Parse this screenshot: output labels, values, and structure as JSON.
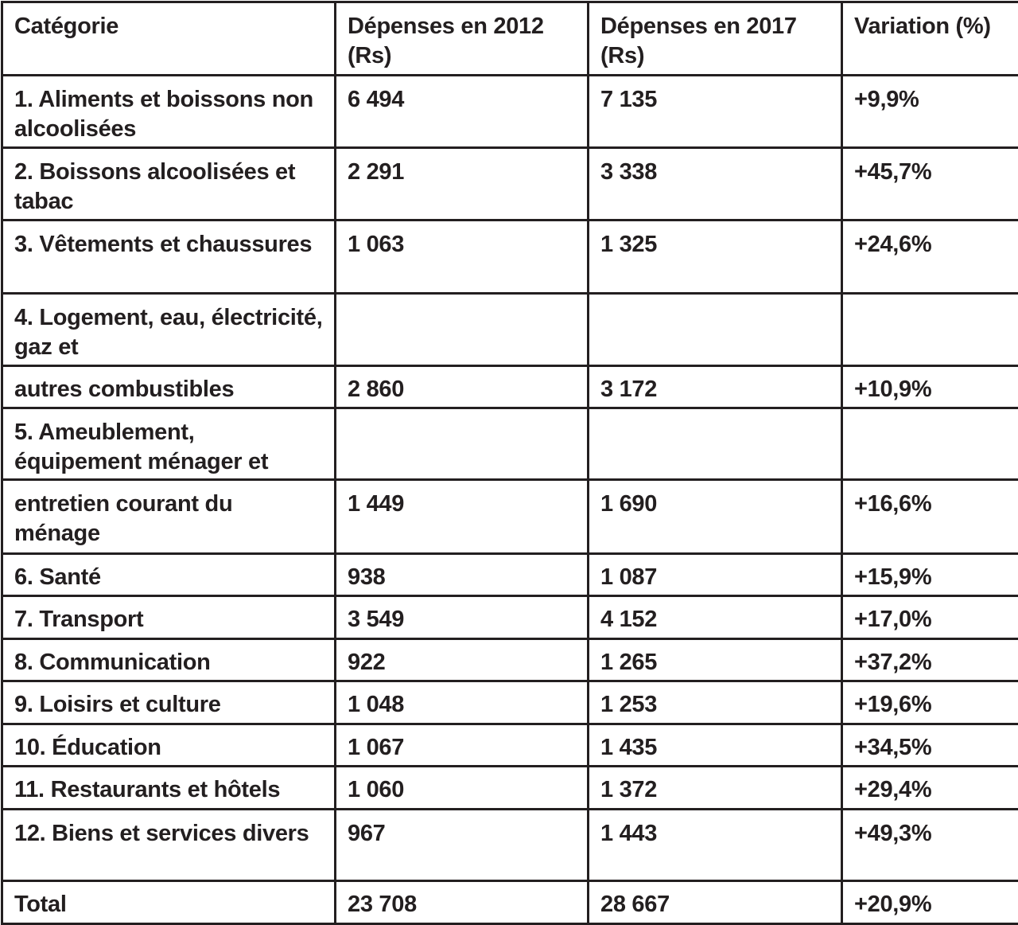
{
  "table": {
    "headers": [
      "Catégorie",
      "Dépenses en 2012 (Rs)",
      "Dépenses en 2017 (Rs)",
      "Variation (%)"
    ],
    "rows": [
      [
        "1. Aliments et boissons non alcoolisées",
        "6 494",
        "7 135",
        "+9,9%"
      ],
      [
        "2. Boissons alcoolisées et tabac",
        "2 291",
        "3 338",
        "+45,7%"
      ],
      [
        "3. Vêtements et chaussures",
        "1 063",
        "1 325",
        "+24,6%"
      ],
      [
        "4. Logement, eau, électricité, gaz et",
        "",
        "",
        ""
      ],
      [
        "autres combustibles",
        "2 860",
        "3 172",
        "+10,9%"
      ],
      [
        "5. Ameublement, équipement ménager et",
        "",
        "",
        ""
      ],
      [
        "entretien courant du ménage",
        "1 449",
        "1 690",
        "+16,6%"
      ],
      [
        "6. Santé",
        "938",
        "1 087",
        "+15,9%"
      ],
      [
        "7. Transport",
        "3 549",
        "4 152",
        "+17,0%"
      ],
      [
        "8. Communication",
        "922",
        "1 265",
        "+37,2%"
      ],
      [
        "9. Loisirs et culture",
        "1 048",
        "1 253",
        "+19,6%"
      ],
      [
        "10. Éducation",
        "1 067",
        "1 435",
        "+34,5%"
      ],
      [
        "11. Restaurants et hôtels",
        "1 060",
        "1 372",
        "+29,4%"
      ],
      [
        "12. Biens et services divers",
        "967",
        "1 443",
        "+49,3%"
      ],
      [
        "Total",
        "23 708",
        "28 667",
        "+20,9%"
      ]
    ]
  },
  "colors": {
    "text": "#231f20",
    "border": "#231f20",
    "background": "#ffffff"
  }
}
